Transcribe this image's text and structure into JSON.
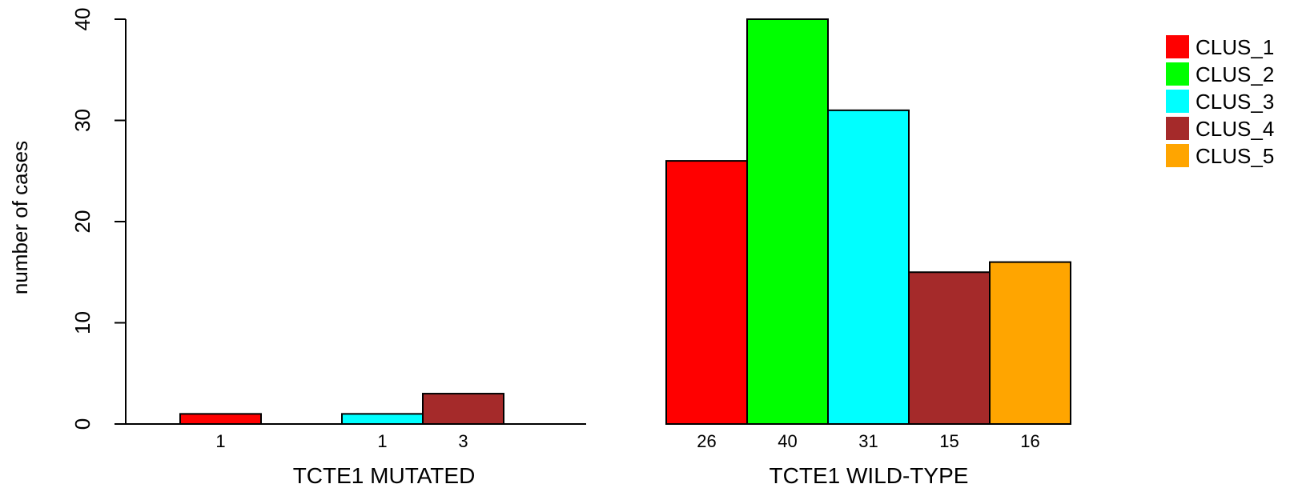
{
  "chart_data": {
    "type": "bar",
    "title": "",
    "xlabel": "",
    "ylabel": "number of cases",
    "ylim": [
      0,
      40
    ],
    "yticks": [
      0,
      10,
      20,
      30,
      40
    ],
    "grid": false,
    "legend_position": "top-right",
    "groups": [
      "TCTE1 MUTATED",
      "TCTE1 WILD-TYPE"
    ],
    "series": [
      {
        "name": "CLUS_1",
        "color": "#ff0000",
        "values": [
          1,
          26
        ],
        "labels": [
          "1",
          "26"
        ]
      },
      {
        "name": "CLUS_2",
        "color": "#00ff00",
        "values": [
          0,
          40
        ],
        "labels": [
          "",
          "40"
        ]
      },
      {
        "name": "CLUS_3",
        "color": "#00ffff",
        "values": [
          1,
          31
        ],
        "labels": [
          "1",
          "31"
        ]
      },
      {
        "name": "CLUS_4",
        "color": "#a52a2a",
        "values": [
          3,
          15
        ],
        "labels": [
          "3",
          "15"
        ]
      },
      {
        "name": "CLUS_5",
        "color": "#ffa500",
        "values": [
          0,
          16
        ],
        "labels": [
          "",
          "16"
        ]
      }
    ]
  }
}
